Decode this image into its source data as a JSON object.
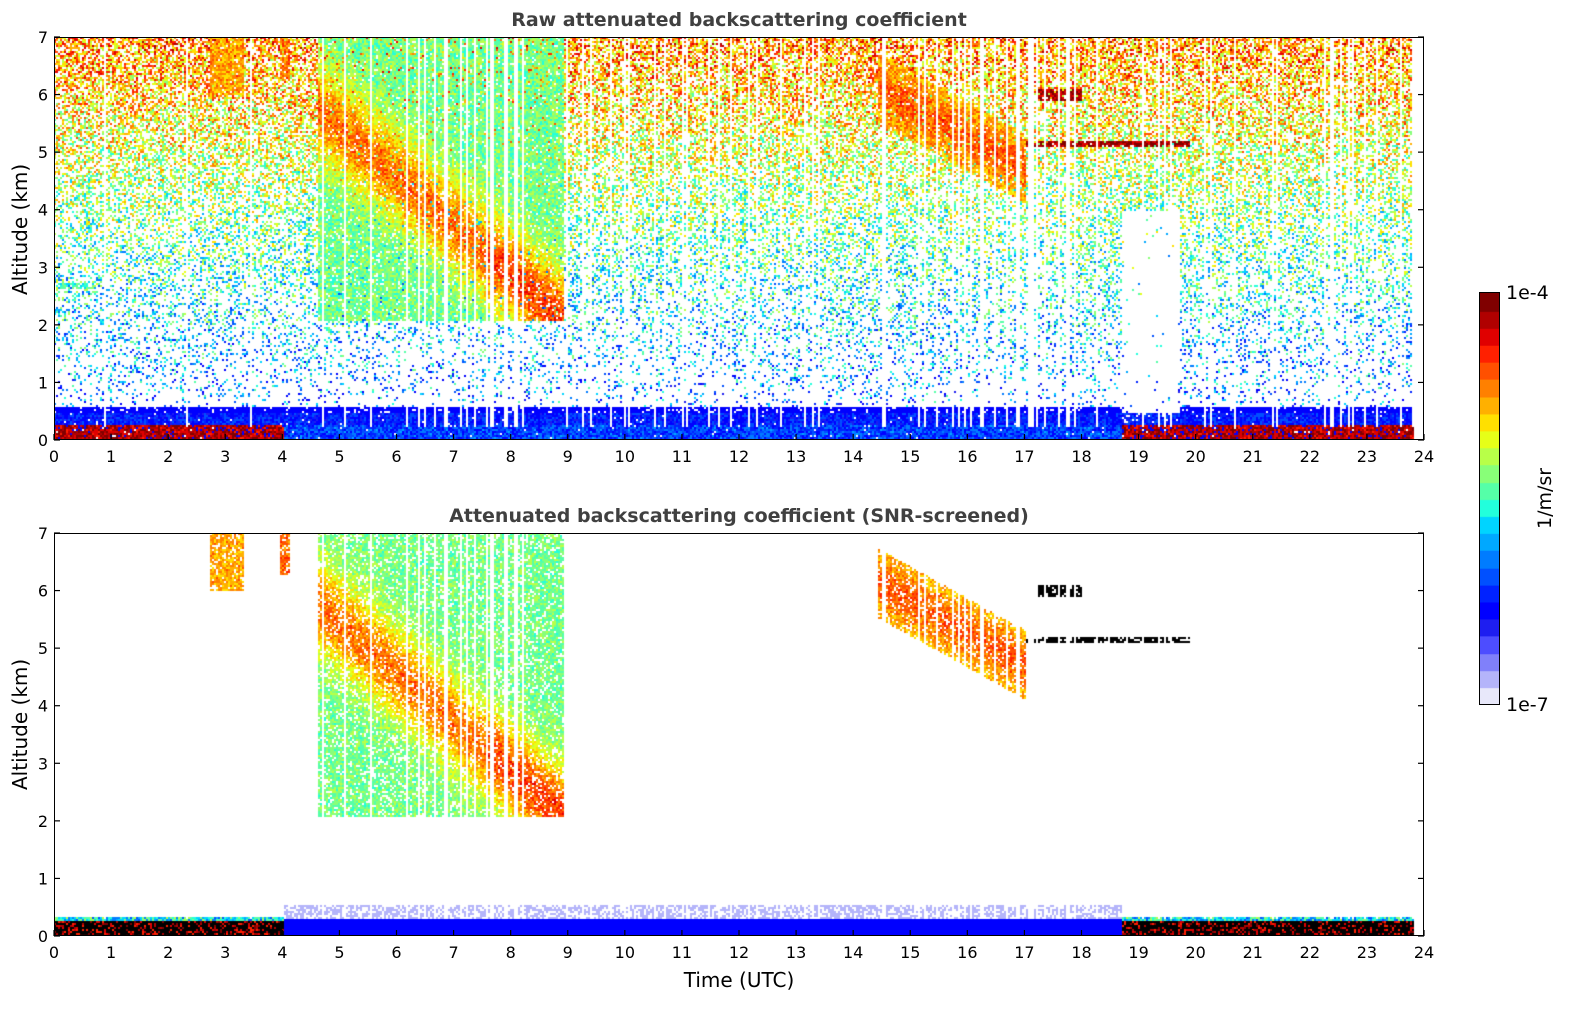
{
  "chart_data": [
    {
      "type": "heatmap",
      "title": "Raw attenuated backscattering coefficient",
      "xlabel": "",
      "ylabel": "Altitude (km)",
      "xlim": [
        0,
        24
      ],
      "ylim": [
        0,
        7
      ],
      "x_ticks": [
        "0",
        "1",
        "2",
        "3",
        "4",
        "5",
        "6",
        "7",
        "8",
        "9",
        "10",
        "11",
        "12",
        "13",
        "14",
        "15",
        "16",
        "17",
        "18",
        "19",
        "20",
        "21",
        "22",
        "23",
        "24"
      ],
      "y_ticks": [
        "0",
        "1",
        "2",
        "3",
        "4",
        "5",
        "6",
        "7"
      ],
      "screened": false,
      "features": [
        {
          "name": "boundary-layer-aerosol",
          "t_start": 0.0,
          "t_end": 23.8,
          "alt_top_km": 0.3,
          "level": "high"
        },
        {
          "name": "cirrus-descending-band",
          "t_start": 4.5,
          "t_end": 8.8,
          "alt_top_km": 5.8,
          "alt_bottom_km": 2.1,
          "level": "medium-high"
        },
        {
          "name": "upper-cloud",
          "t_start": 14.5,
          "t_end": 17.0,
          "alt_top_km": 6.3,
          "alt_bottom_km": 4.6,
          "level": "high"
        },
        {
          "name": "thin-layer",
          "t_start": 17.0,
          "t_end": 19.9,
          "alt_km": 5.15,
          "level": "max"
        },
        {
          "name": "small-cloud",
          "t_start": 17.2,
          "t_end": 18.0,
          "alt_km": 6.0,
          "level": "max"
        },
        {
          "name": "small-aerosol-layer",
          "t_start": 0.1,
          "t_end": 0.6,
          "alt_km": 2.7,
          "level": "medium"
        }
      ]
    },
    {
      "type": "heatmap",
      "title": "Attenuated backscattering coefficient (SNR-screened)",
      "xlabel": "Time (UTC)",
      "ylabel": "Altitude (km)",
      "xlim": [
        0,
        24
      ],
      "ylim": [
        0,
        7
      ],
      "x_ticks": [
        "0",
        "1",
        "2",
        "3",
        "4",
        "5",
        "6",
        "7",
        "8",
        "9",
        "10",
        "11",
        "12",
        "13",
        "14",
        "15",
        "16",
        "17",
        "18",
        "19",
        "20",
        "21",
        "22",
        "23",
        "24"
      ],
      "y_ticks": [
        "0",
        "1",
        "2",
        "3",
        "4",
        "5",
        "6",
        "7"
      ],
      "screened": true
    }
  ],
  "colorbar": {
    "max_label": "1e-4",
    "min_label": "1e-7",
    "unit": "1/m/sr",
    "colormap": "jet",
    "colors": [
      "#e8e8fa",
      "#b4b4fa",
      "#8080fa",
      "#4d4dff",
      "#1e1ef0",
      "#0000ff",
      "#0022ff",
      "#0050ff",
      "#007cff",
      "#00a8ff",
      "#00d4ff",
      "#22ffdc",
      "#55ffa8",
      "#88ff78",
      "#b8ff48",
      "#e6ff18",
      "#ffe000",
      "#ffb000",
      "#ff8000",
      "#ff5000",
      "#ff2000",
      "#e00000",
      "#b00000",
      "#800000"
    ]
  }
}
